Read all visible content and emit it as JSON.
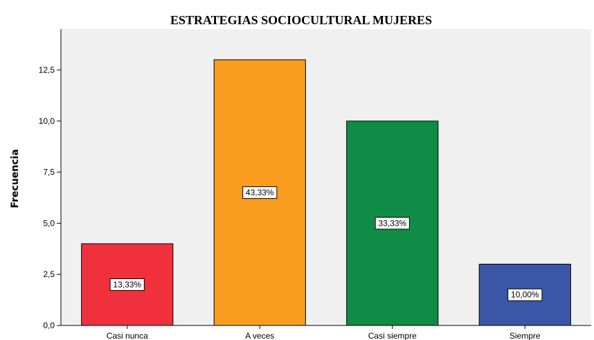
{
  "chart_data": {
    "type": "bar",
    "title": "ESTRATEGIAS SOCIOCULTURAL MUJERES",
    "xlabel": "",
    "ylabel": "Frecuencia",
    "categories": [
      "Casi nunca",
      "A veces",
      "Casi siempre",
      "Siempre"
    ],
    "values": [
      4,
      13,
      10,
      3
    ],
    "data_labels": [
      "13,33%",
      "43,33%",
      "33,33%",
      "10,00%"
    ],
    "bar_colors": [
      "#f0313b",
      "#f99c1f",
      "#108c46",
      "#3b56a6"
    ],
    "ylim": [
      0,
      14.5
    ],
    "yticks": [
      0,
      2.5,
      5,
      7.5,
      10,
      12.5
    ],
    "ytick_labels": [
      "0,0",
      "2,5",
      "5,0",
      "7,5",
      "10,0",
      "12,5"
    ],
    "plot_background": "#f0f0f0",
    "grid": false,
    "legend": "none"
  }
}
